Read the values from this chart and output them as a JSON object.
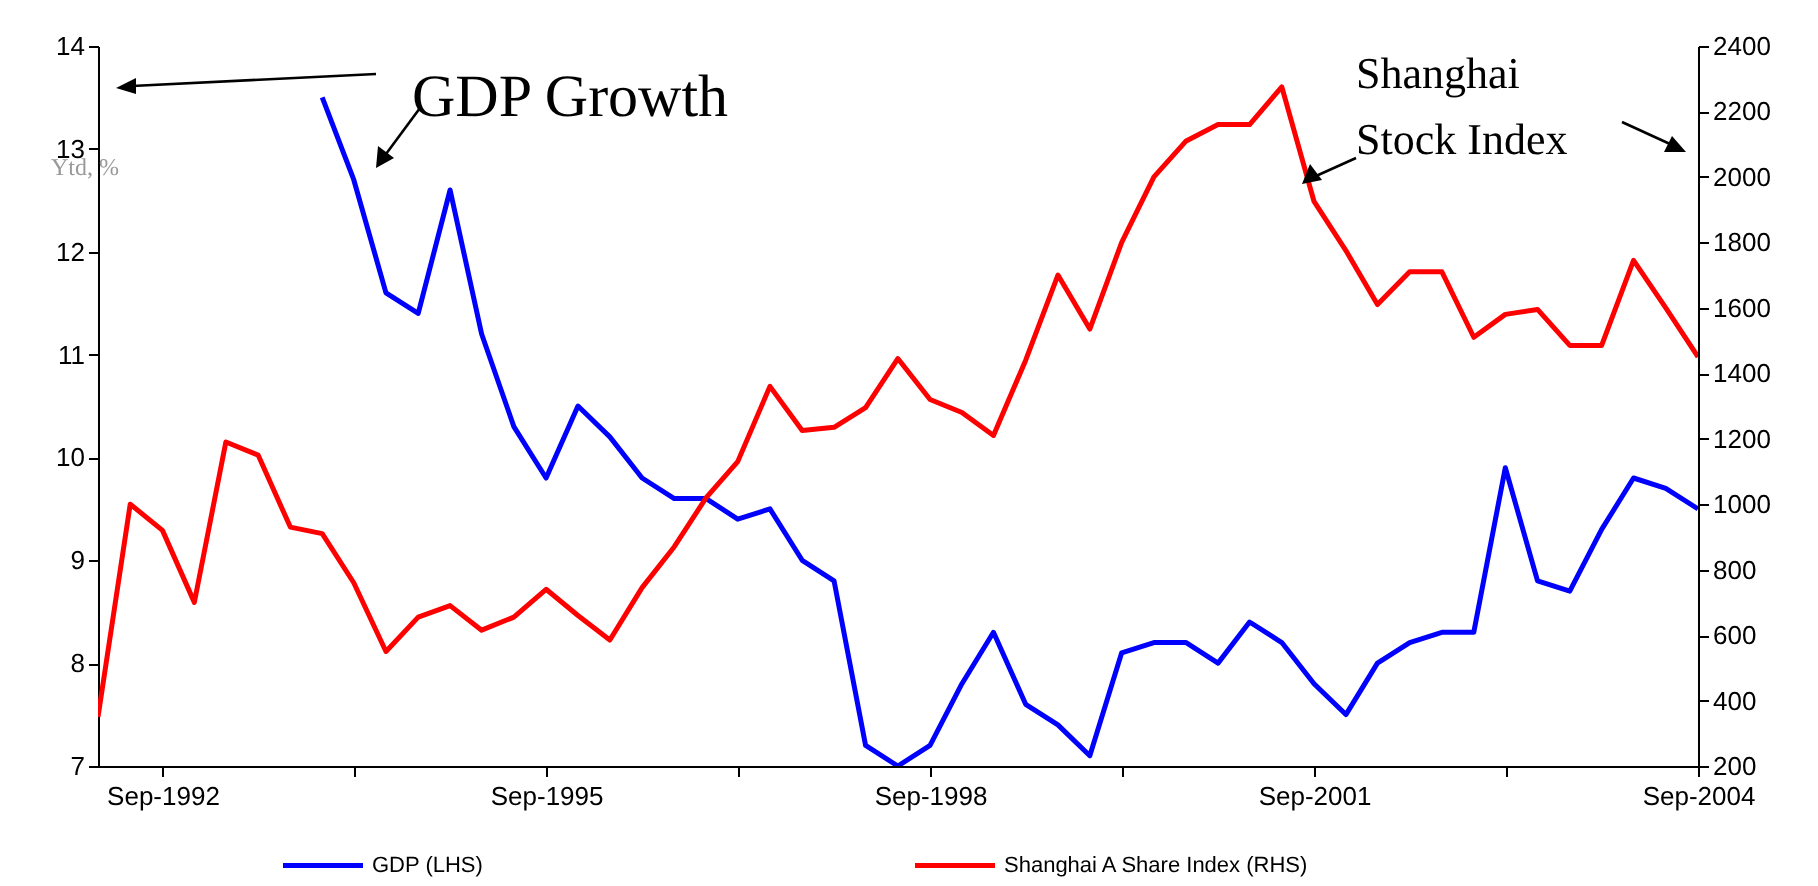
{
  "chart_data": {
    "type": "line",
    "x": [
      "1992-03",
      "1992-06",
      "1992-09",
      "1992-12",
      "1993-03",
      "1993-06",
      "1993-09",
      "1993-12",
      "1994-03",
      "1994-06",
      "1994-09",
      "1994-12",
      "1995-03",
      "1995-06",
      "1995-09",
      "1995-12",
      "1996-03",
      "1996-06",
      "1996-09",
      "1996-12",
      "1997-03",
      "1997-06",
      "1997-09",
      "1997-12",
      "1998-03",
      "1998-06",
      "1998-09",
      "1998-12",
      "1999-03",
      "1999-06",
      "1999-09",
      "1999-12",
      "2000-03",
      "2000-06",
      "2000-09",
      "2000-12",
      "2001-03",
      "2001-06",
      "2001-09",
      "2001-12",
      "2002-03",
      "2002-06",
      "2002-09",
      "2002-12",
      "2003-03",
      "2003-06",
      "2003-09",
      "2003-12",
      "2004-03",
      "2004-06",
      "2004-09"
    ],
    "series": [
      {
        "name": "GDP (LHS)",
        "color": "#0000ff",
        "values": [
          null,
          null,
          null,
          null,
          null,
          null,
          null,
          13.5,
          12.7,
          11.6,
          11.4,
          12.6,
          11.2,
          10.3,
          9.8,
          10.5,
          10.2,
          9.8,
          9.6,
          9.6,
          9.4,
          9.5,
          9.0,
          8.8,
          7.2,
          7.0,
          7.2,
          7.8,
          8.3,
          7.6,
          7.4,
          7.1,
          8.1,
          8.2,
          8.2,
          8.0,
          8.4,
          8.2,
          7.8,
          7.5,
          8.0,
          8.2,
          8.3,
          8.3,
          9.9,
          8.8,
          8.7,
          9.3,
          9.8,
          9.7,
          9.5
        ]
      },
      {
        "name": "Shanghai A Share Index (RHS)",
        "color": "#ff0000",
        "axis": "y2",
        "values": [
          350,
          1000,
          920,
          700,
          1190,
          1150,
          930,
          910,
          760,
          550,
          655,
          690,
          615,
          655,
          740,
          660,
          585,
          745,
          870,
          1020,
          1130,
          1360,
          1225,
          1235,
          1295,
          1445,
          1320,
          1280,
          1210,
          1440,
          1700,
          1535,
          1800,
          2000,
          2110,
          2160,
          2160,
          2275,
          1925,
          1775,
          1610,
          1710,
          1710,
          1510,
          1580,
          1595,
          1485,
          1485,
          1745,
          1600,
          1450
        ]
      }
    ],
    "xlim": [
      "1992-03",
      "2004-09"
    ],
    "xticks": [
      {
        "value": "1992-09",
        "label": "Sep-1992"
      },
      {
        "value": "1994-03",
        "label": null
      },
      {
        "value": "1995-09",
        "label": "Sep-1995"
      },
      {
        "value": "1997-03",
        "label": null
      },
      {
        "value": "1998-09",
        "label": "Sep-1998"
      },
      {
        "value": "2000-03",
        "label": null
      },
      {
        "value": "2001-09",
        "label": "Sep-2001"
      },
      {
        "value": "2003-03",
        "label": null
      },
      {
        "value": "2004-09",
        "label": "Sep-2004"
      }
    ],
    "ylim": [
      7,
      14
    ],
    "yticks": [
      7,
      8,
      9,
      10,
      11,
      12,
      13,
      14
    ],
    "y2lim": [
      200,
      2400
    ],
    "y2ticks": [
      200,
      400,
      600,
      800,
      1000,
      1200,
      1400,
      1600,
      1800,
      2000,
      2200,
      2400
    ],
    "ylabel": "Ytd, %",
    "annotations": [
      "GDP Growth",
      "Shanghai\nStock Index"
    ],
    "legend": "bottom"
  }
}
